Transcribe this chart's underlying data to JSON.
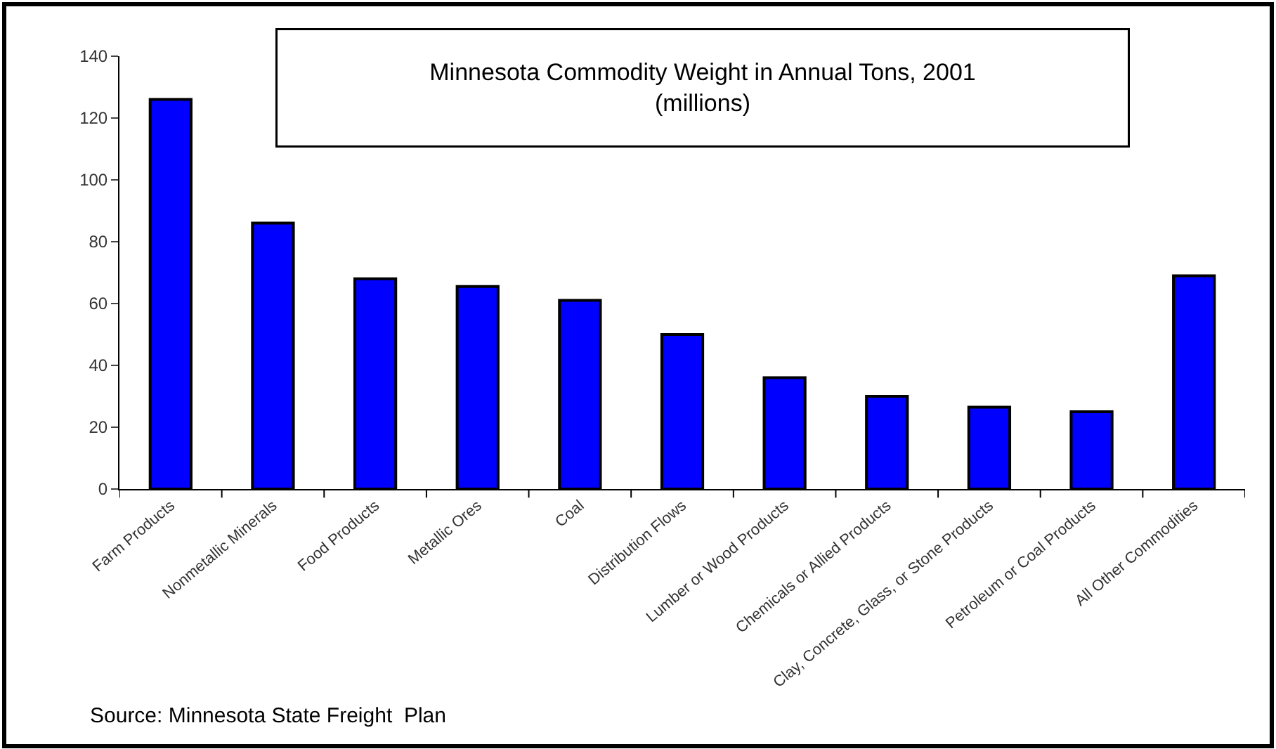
{
  "chart_data": {
    "type": "bar",
    "title": "Minnesota Commodity Weight in Annual Tons, 2001\n(millions)",
    "categories": [
      "Farm Products",
      "Nonmetallic Minerals",
      "Food Products",
      "Metallic Ores",
      "Coal",
      "Distribution Flows",
      "Lumber or Wood Products",
      "Chemicals or Allied Products",
      "Clay, Concrete, Glass, or Stone Products",
      "Petroleum or Coal Products",
      "All Other Commodities"
    ],
    "values": [
      126,
      86,
      68,
      65.5,
      61,
      50,
      36,
      30,
      26.5,
      25,
      69
    ],
    "color": "#0000ff",
    "ylim": [
      0,
      140
    ],
    "yticks": [
      0,
      20,
      40,
      60,
      80,
      100,
      120,
      140
    ],
    "annotations": [
      "Source: Minnesota State Freight  Plan"
    ]
  }
}
